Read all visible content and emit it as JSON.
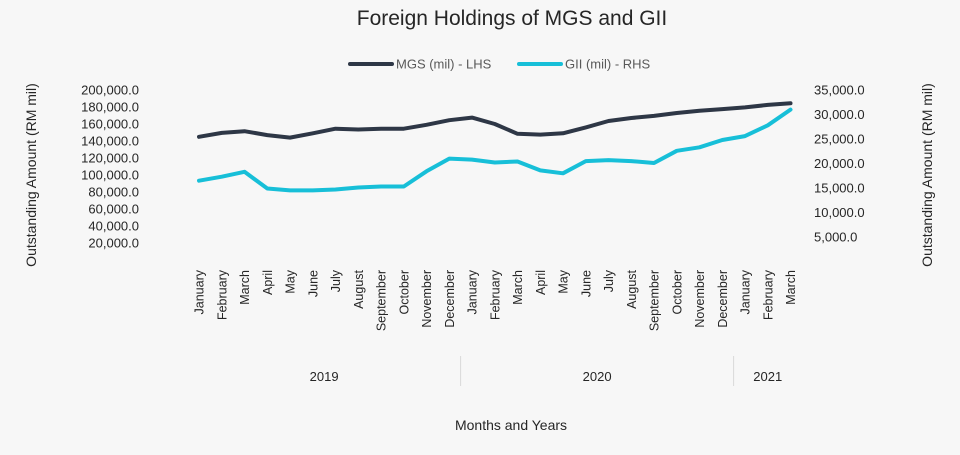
{
  "chart_data": {
    "type": "line",
    "title": "Foreign Holdings of MGS and GII",
    "xlabel": "Months and Years",
    "ylabel_left": "Outstanding Amount (RM mil)",
    "ylabel_right": "Outstanding Amount (RM mil)",
    "ylim_left": [
      20000,
      200000
    ],
    "ylim_right": [
      5000,
      35000
    ],
    "left_ticks": [
      "200,000.0",
      "180,000.0",
      "160,000.0",
      "140,000.0",
      "120,000.0",
      "100,000.0",
      "80,000.0",
      "60,000.0",
      "40,000.0",
      "20,000.0"
    ],
    "left_tick_values": [
      200000,
      180000,
      160000,
      140000,
      120000,
      100000,
      80000,
      60000,
      40000,
      20000
    ],
    "right_ticks": [
      "35,000.0",
      "30,000.0",
      "25,000.0",
      "20,000.0",
      "15,000.0",
      "10,000.0",
      "5,000.0"
    ],
    "right_tick_values": [
      35000,
      30000,
      25000,
      20000,
      15000,
      10000,
      5000
    ],
    "categories": [
      "January",
      "February",
      "March",
      "April",
      "May",
      "June",
      "July",
      "August",
      "September",
      "October",
      "November",
      "December",
      "January",
      "February",
      "March",
      "April",
      "May",
      "June",
      "July",
      "August",
      "September",
      "October",
      "November",
      "December",
      "January",
      "February",
      "March"
    ],
    "years": [
      {
        "label": "2019",
        "start": 0,
        "end": 11
      },
      {
        "label": "2020",
        "start": 12,
        "end": 23
      },
      {
        "label": "2021",
        "start": 24,
        "end": 26
      }
    ],
    "legend_position": "top-center",
    "series": [
      {
        "name": "MGS (mil) - LHS",
        "axis": "left",
        "color": "#2e3746",
        "values": [
          145000,
          149500,
          151500,
          147000,
          144000,
          149000,
          154500,
          153500,
          154500,
          154500,
          159000,
          164500,
          167500,
          160000,
          148500,
          147500,
          149000,
          156000,
          163500,
          167000,
          169500,
          173000,
          175500,
          177500,
          179500,
          182500,
          184500
        ]
      },
      {
        "name": "GII (mil) - RHS",
        "axis": "right",
        "color": "#17bfd8",
        "values": [
          16500,
          17300,
          18300,
          14900,
          14500,
          14500,
          14700,
          15100,
          15300,
          15300,
          18400,
          21000,
          20800,
          20200,
          20400,
          18600,
          18000,
          20500,
          20700,
          20500,
          20100,
          22600,
          23300,
          24800,
          25600,
          27800,
          31000
        ]
      }
    ]
  }
}
